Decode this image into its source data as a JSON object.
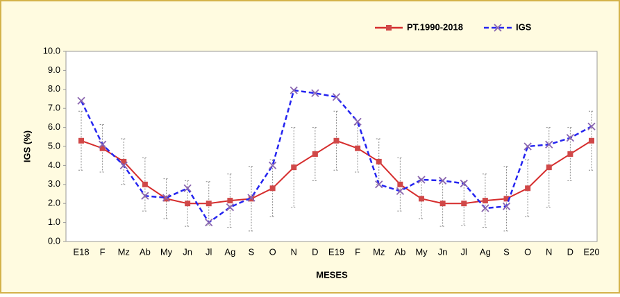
{
  "chart_data": {
    "type": "line",
    "x_label": "MESES",
    "y_label": "IGS  (%)",
    "categories": [
      "E18",
      "F",
      "Mz",
      "Ab",
      "My",
      "Jn",
      "Jl",
      "Ag",
      "S",
      "O",
      "N",
      "D",
      "E19",
      "F",
      "Mz",
      "Ab",
      "My",
      "Jn",
      "Jl",
      "Ag",
      "S",
      "O",
      "N",
      "D",
      "E20"
    ],
    "series": [
      {
        "name": "PT.1990-2018",
        "color": "#d62d2d",
        "marker": "square",
        "marker_color": "#d04848",
        "dashed": false,
        "values": [
          5.3,
          4.9,
          4.2,
          3.0,
          2.25,
          2.0,
          2.0,
          2.15,
          2.25,
          2.8,
          3.9,
          4.6,
          5.3,
          4.9,
          4.2,
          3.0,
          2.25,
          2.0,
          2.0,
          2.15,
          2.25,
          2.8,
          3.9,
          4.6,
          5.3
        ],
        "errors": [
          1.55,
          1.25,
          1.2,
          1.4,
          1.05,
          1.2,
          1.15,
          1.4,
          1.7,
          1.5,
          2.1,
          1.4,
          1.55,
          1.25,
          1.2,
          1.4,
          1.05,
          1.2,
          1.15,
          1.4,
          1.7,
          1.5,
          2.1,
          1.4,
          1.55
        ]
      },
      {
        "name": "IGS",
        "color": "#2424f0",
        "marker": "x",
        "marker_color": "#8a66b0",
        "dashed": true,
        "values": [
          7.4,
          5.1,
          4.0,
          2.4,
          2.3,
          2.8,
          1.0,
          1.8,
          2.3,
          4.0,
          7.95,
          7.8,
          7.6,
          6.3,
          3.0,
          2.65,
          3.25,
          3.2,
          3.05,
          1.75,
          1.85,
          5.0,
          5.1,
          5.45,
          6.05
        ]
      }
    ],
    "ylim": [
      0,
      10
    ],
    "yticks": [
      {
        "value": 0,
        "label": "0.0"
      },
      {
        "value": 1,
        "label": "1.0"
      },
      {
        "value": 2,
        "label": "2.0"
      },
      {
        "value": 3,
        "label": "3.0"
      },
      {
        "value": 4,
        "label": "4.0"
      },
      {
        "value": 5,
        "label": "5.0"
      },
      {
        "value": 6,
        "label": "6.0"
      },
      {
        "value": 7,
        "label": "7.0"
      },
      {
        "value": 8,
        "label": "8.0"
      },
      {
        "value": 9,
        "label": "9.0"
      },
      {
        "value": 10,
        "label": "10.0"
      }
    ],
    "legend": "top-right"
  }
}
